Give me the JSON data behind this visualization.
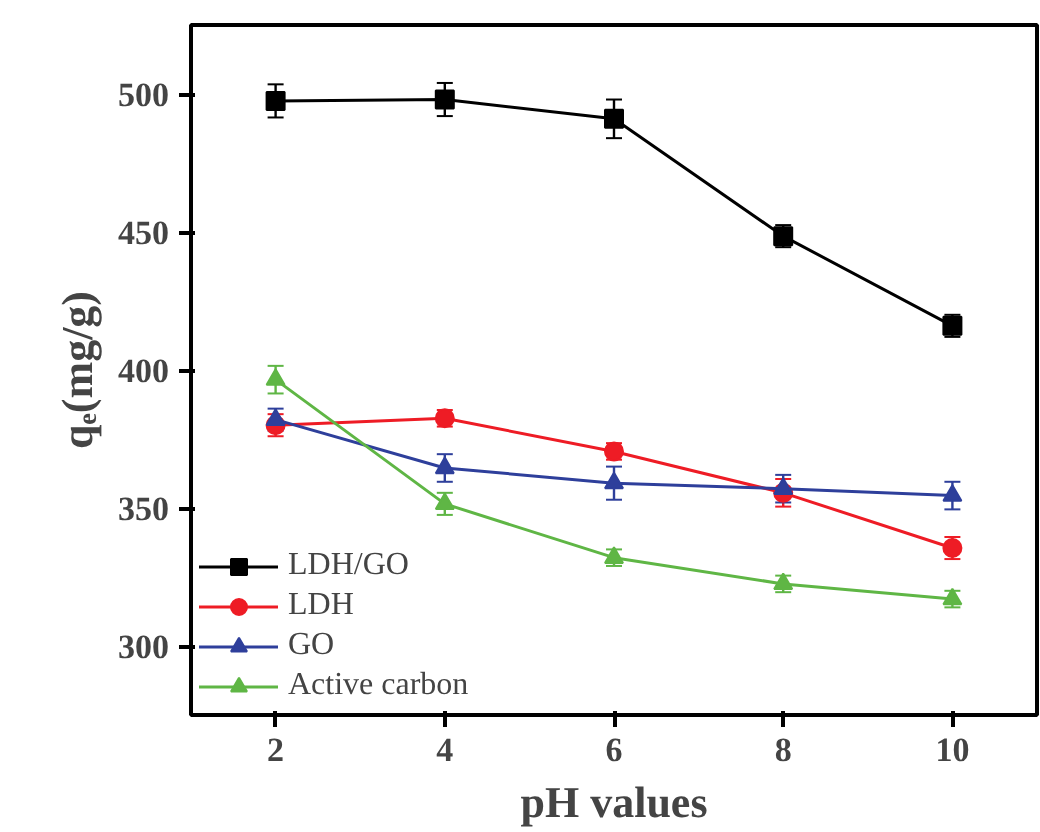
{
  "chart_data": {
    "type": "line",
    "xlabel": "pH values",
    "ylabel": "qₑ(mg/g)",
    "x": [
      2,
      4,
      6,
      8,
      10
    ],
    "xlim": [
      1,
      11
    ],
    "xticks": [
      2,
      4,
      6,
      8,
      10
    ],
    "ylim": [
      275,
      525
    ],
    "yticks": [
      300,
      350,
      400,
      450,
      500
    ],
    "grid": false,
    "legend": "bottom left",
    "series": [
      {
        "name": "LDH/GO",
        "color": "#000000",
        "marker": "square",
        "values": [
          497.5,
          498,
          491,
          448.5,
          416
        ],
        "errors": [
          6,
          6,
          7,
          4,
          4
        ]
      },
      {
        "name": "LDH",
        "color": "#ee1c25",
        "marker": "circle",
        "values": [
          380,
          382.5,
          370.5,
          355.5,
          335.5
        ],
        "errors": [
          4,
          3,
          3,
          5,
          4
        ]
      },
      {
        "name": "GO",
        "color": "#2e3f9b",
        "marker": "triangle",
        "values": [
          382,
          364.5,
          359,
          357,
          354.5
        ],
        "errors": [
          4,
          5,
          6,
          5,
          5
        ]
      },
      {
        "name": "Active carbon",
        "color": "#5fb645",
        "marker": "triangle",
        "values": [
          396.5,
          351.5,
          332,
          322.5,
          317
        ],
        "errors": [
          5,
          4,
          3,
          3,
          3
        ]
      }
    ]
  }
}
